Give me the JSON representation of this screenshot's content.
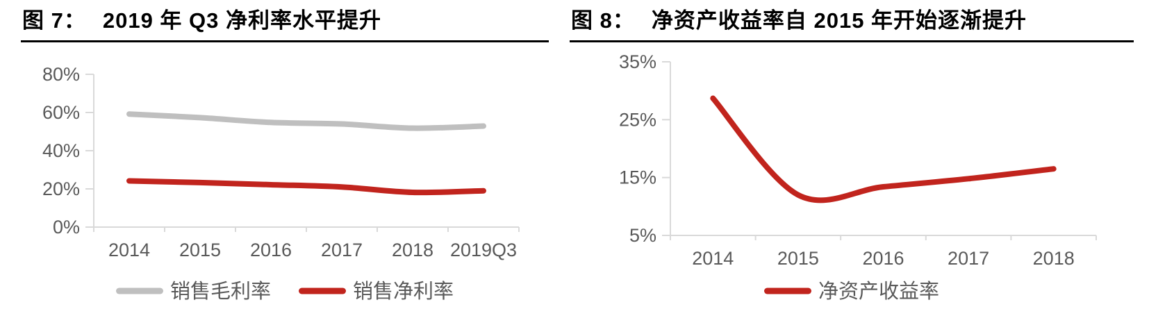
{
  "figures": [
    {
      "label": "图 7：",
      "title": "2019 年 Q3 净利率水平提升"
    },
    {
      "label": "图 8：",
      "title": "净资产收益率自 2015 年开始逐渐提升"
    }
  ],
  "colors": {
    "axis_line": "#D9D9D9",
    "tick_text": "#595959",
    "title_text": "#000000",
    "series_gray": "#BFBFBF",
    "series_red": "#C1241D"
  },
  "chart_data": [
    {
      "type": "line",
      "title": "2019 年 Q3 净利率水平提升",
      "categories": [
        "2014",
        "2015",
        "2016",
        "2017",
        "2018",
        "2019Q3"
      ],
      "series": [
        {
          "name": "销售毛利率",
          "color": "#BFBFBF",
          "values": [
            59.2,
            57.3,
            54.8,
            54.0,
            51.8,
            52.9
          ]
        },
        {
          "name": "销售净利率",
          "color": "#C1241D",
          "values": [
            24.2,
            23.3,
            22.2,
            21.0,
            18.2,
            19.0
          ]
        }
      ],
      "xlabel": "",
      "ylabel": "",
      "ylim": [
        0,
        80
      ],
      "yticks": [
        0,
        20,
        40,
        60,
        80
      ],
      "ytick_suffix": "%",
      "grid": false,
      "legend_position": "bottom",
      "line_style": "smooth"
    },
    {
      "type": "line",
      "title": "净资产收益率自 2015 年开始逐渐提升",
      "categories": [
        "2014",
        "2015",
        "2016",
        "2017",
        "2018"
      ],
      "series": [
        {
          "name": "净资产收益率",
          "color": "#C1241D",
          "values": [
            28.7,
            12.0,
            13.4,
            14.8,
            16.5
          ]
        }
      ],
      "xlabel": "",
      "ylabel": "",
      "ylim": [
        5,
        35
      ],
      "yticks": [
        5,
        15,
        25,
        35
      ],
      "ytick_suffix": "%",
      "grid": false,
      "legend_position": "bottom",
      "line_style": "smooth"
    }
  ]
}
